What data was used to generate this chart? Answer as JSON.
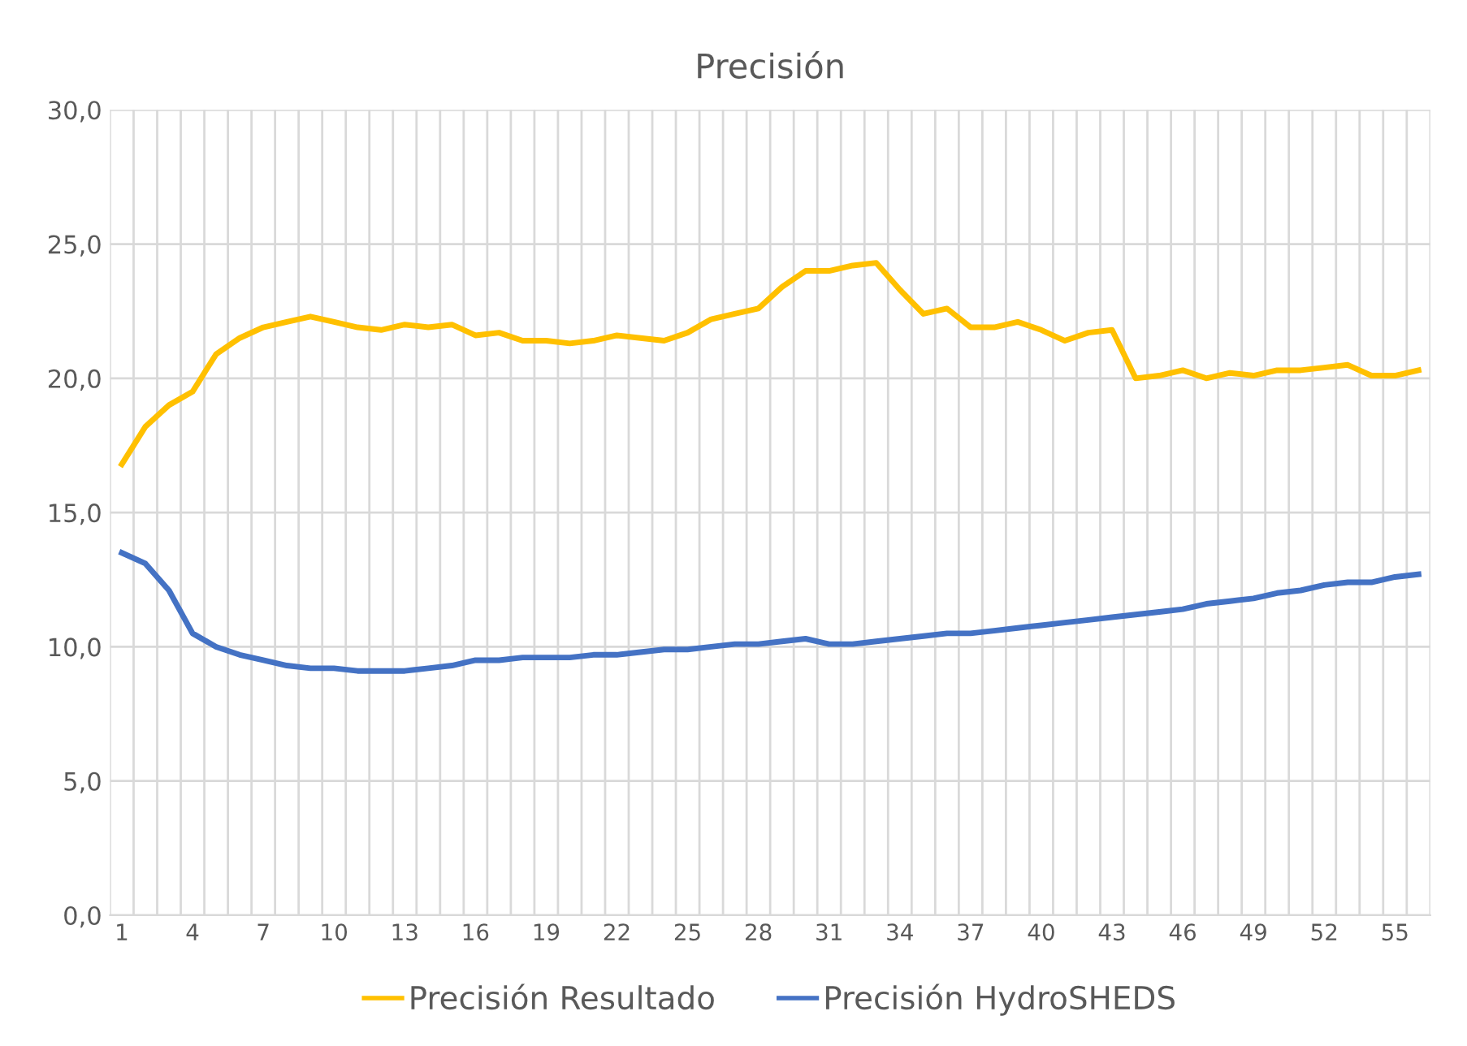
{
  "chart_data": {
    "type": "line",
    "title": "Precisión",
    "categories": [
      "1",
      null,
      null,
      "4",
      null,
      null,
      "7",
      null,
      null,
      "10",
      null,
      null,
      "13",
      null,
      null,
      "16",
      null,
      null,
      "19",
      null,
      null,
      "22",
      null,
      null,
      "25",
      null,
      null,
      "28",
      null,
      null,
      "31",
      null,
      null,
      "34",
      null,
      null,
      "37",
      null,
      null,
      "40",
      null,
      null,
      "43",
      null,
      null,
      "46",
      null,
      null,
      "49",
      null,
      null,
      "52",
      null,
      null,
      "55",
      null
    ],
    "series": [
      {
        "name": "Precisión Resultado",
        "color": "#ffc000",
        "values": [
          16.8,
          18.2,
          19.0,
          19.5,
          20.9,
          21.5,
          21.9,
          22.1,
          22.3,
          22.1,
          21.9,
          21.8,
          22.0,
          21.9,
          22.0,
          21.6,
          21.7,
          21.4,
          21.4,
          21.3,
          21.4,
          21.6,
          21.5,
          21.4,
          21.7,
          22.2,
          22.4,
          22.6,
          23.4,
          24.0,
          24.0,
          24.2,
          24.3,
          23.3,
          22.4,
          22.6,
          21.9,
          21.9,
          22.1,
          21.8,
          21.4,
          21.7,
          21.8,
          20.0,
          20.1,
          20.3,
          20.0,
          20.2,
          20.1,
          20.3,
          20.3,
          20.4,
          20.5,
          20.1,
          20.1,
          20.3
        ]
      },
      {
        "name": "Precisión HydroSHEDS",
        "color": "#4472c4",
        "values": [
          13.5,
          13.1,
          12.1,
          10.5,
          10.0,
          9.7,
          9.5,
          9.3,
          9.2,
          9.2,
          9.1,
          9.1,
          9.1,
          9.2,
          9.3,
          9.5,
          9.5,
          9.6,
          9.6,
          9.6,
          9.7,
          9.7,
          9.8,
          9.9,
          9.9,
          10.0,
          10.1,
          10.1,
          10.2,
          10.3,
          10.1,
          10.1,
          10.2,
          10.3,
          10.4,
          10.5,
          10.5,
          10.6,
          10.7,
          10.8,
          10.9,
          11.0,
          11.1,
          11.2,
          11.3,
          11.4,
          11.6,
          11.7,
          11.8,
          12.0,
          12.1,
          12.3,
          12.4,
          12.4,
          12.6,
          12.7
        ]
      }
    ],
    "ylim": [
      0,
      30
    ],
    "yticks": [
      {
        "value": 0,
        "label": "0,0"
      },
      {
        "value": 5,
        "label": "5,0"
      },
      {
        "value": 10,
        "label": "10,0"
      },
      {
        "value": 15,
        "label": "15,0"
      },
      {
        "value": 20,
        "label": "20,0"
      },
      {
        "value": 25,
        "label": "25,0"
      },
      {
        "value": 30,
        "label": "30,0"
      }
    ],
    "grid": true,
    "legend": "bottom",
    "marker": "none",
    "line_style": "solid"
  }
}
